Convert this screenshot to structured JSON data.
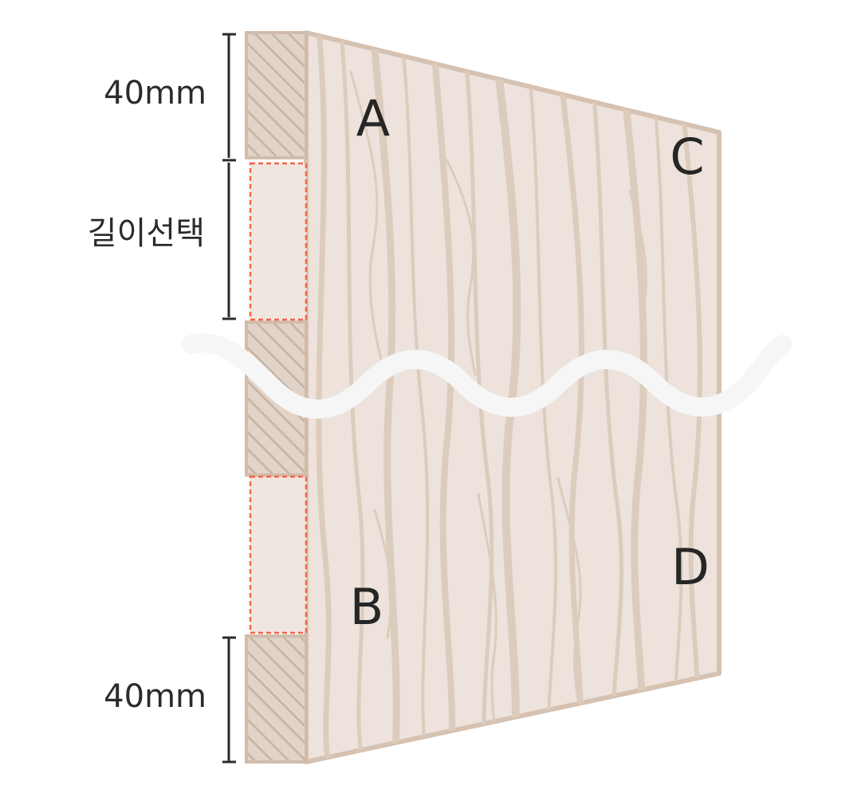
{
  "labels": {
    "dim_top": "40mm",
    "dim_middle": "길이선택",
    "dim_bottom": "40mm",
    "corner_a": "A",
    "corner_b": "B",
    "corner_c": "C",
    "corner_d": "D"
  },
  "colors": {
    "panel_fill": "#ede3dc",
    "panel_edge": "#d6c2b2",
    "grain": "#dcccbd",
    "hatch": "#ccb8a8",
    "cut_line": "#f2644c",
    "dimension_line": "#2b2b2b",
    "break_wave": "#f6f6f6",
    "text": "#262626"
  }
}
